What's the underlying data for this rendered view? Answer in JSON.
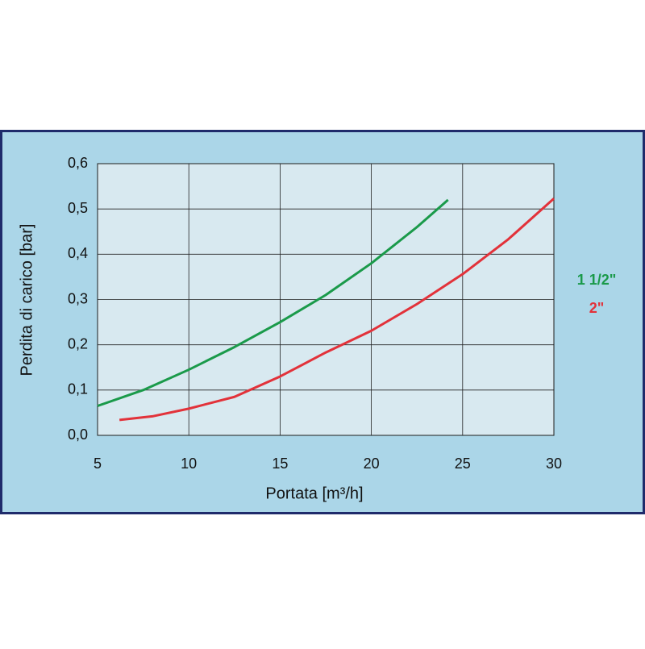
{
  "chart_data": {
    "type": "line",
    "xlabel": "Portata [m³/h]",
    "ylabel": "Perdita di carico [bar]",
    "xlim": [
      5,
      30
    ],
    "xticks": [
      5,
      10,
      15,
      20,
      25,
      30
    ],
    "ylim": [
      0,
      0.6
    ],
    "yticks": [
      {
        "value": 0,
        "label": "0,0"
      },
      {
        "value": 0.1,
        "label": "0,1"
      },
      {
        "value": 0.2,
        "label": "0,2"
      },
      {
        "value": 0.3,
        "label": "0,3"
      },
      {
        "value": 0.4,
        "label": "0,4"
      },
      {
        "value": 0.5,
        "label": "0,5"
      },
      {
        "value": 0.6,
        "label": "0,6"
      }
    ],
    "grid": true,
    "series": [
      {
        "name": "1 1/2\"",
        "color": "#1a9a4a",
        "x": [
          5,
          7.5,
          10,
          12.5,
          15,
          17.5,
          20,
          22.5,
          24.2
        ],
        "values": [
          0.065,
          0.1,
          0.145,
          0.195,
          0.25,
          0.31,
          0.38,
          0.46,
          0.52
        ]
      },
      {
        "name": "2\"",
        "color": "#e2323a",
        "x": [
          6.2,
          8,
          10,
          12.5,
          15,
          17.5,
          20,
          22.5,
          25,
          27.5,
          30
        ],
        "values": [
          0.034,
          0.042,
          0.059,
          0.085,
          0.13,
          0.183,
          0.231,
          0.29,
          0.356,
          0.433,
          0.523
        ]
      }
    ]
  }
}
